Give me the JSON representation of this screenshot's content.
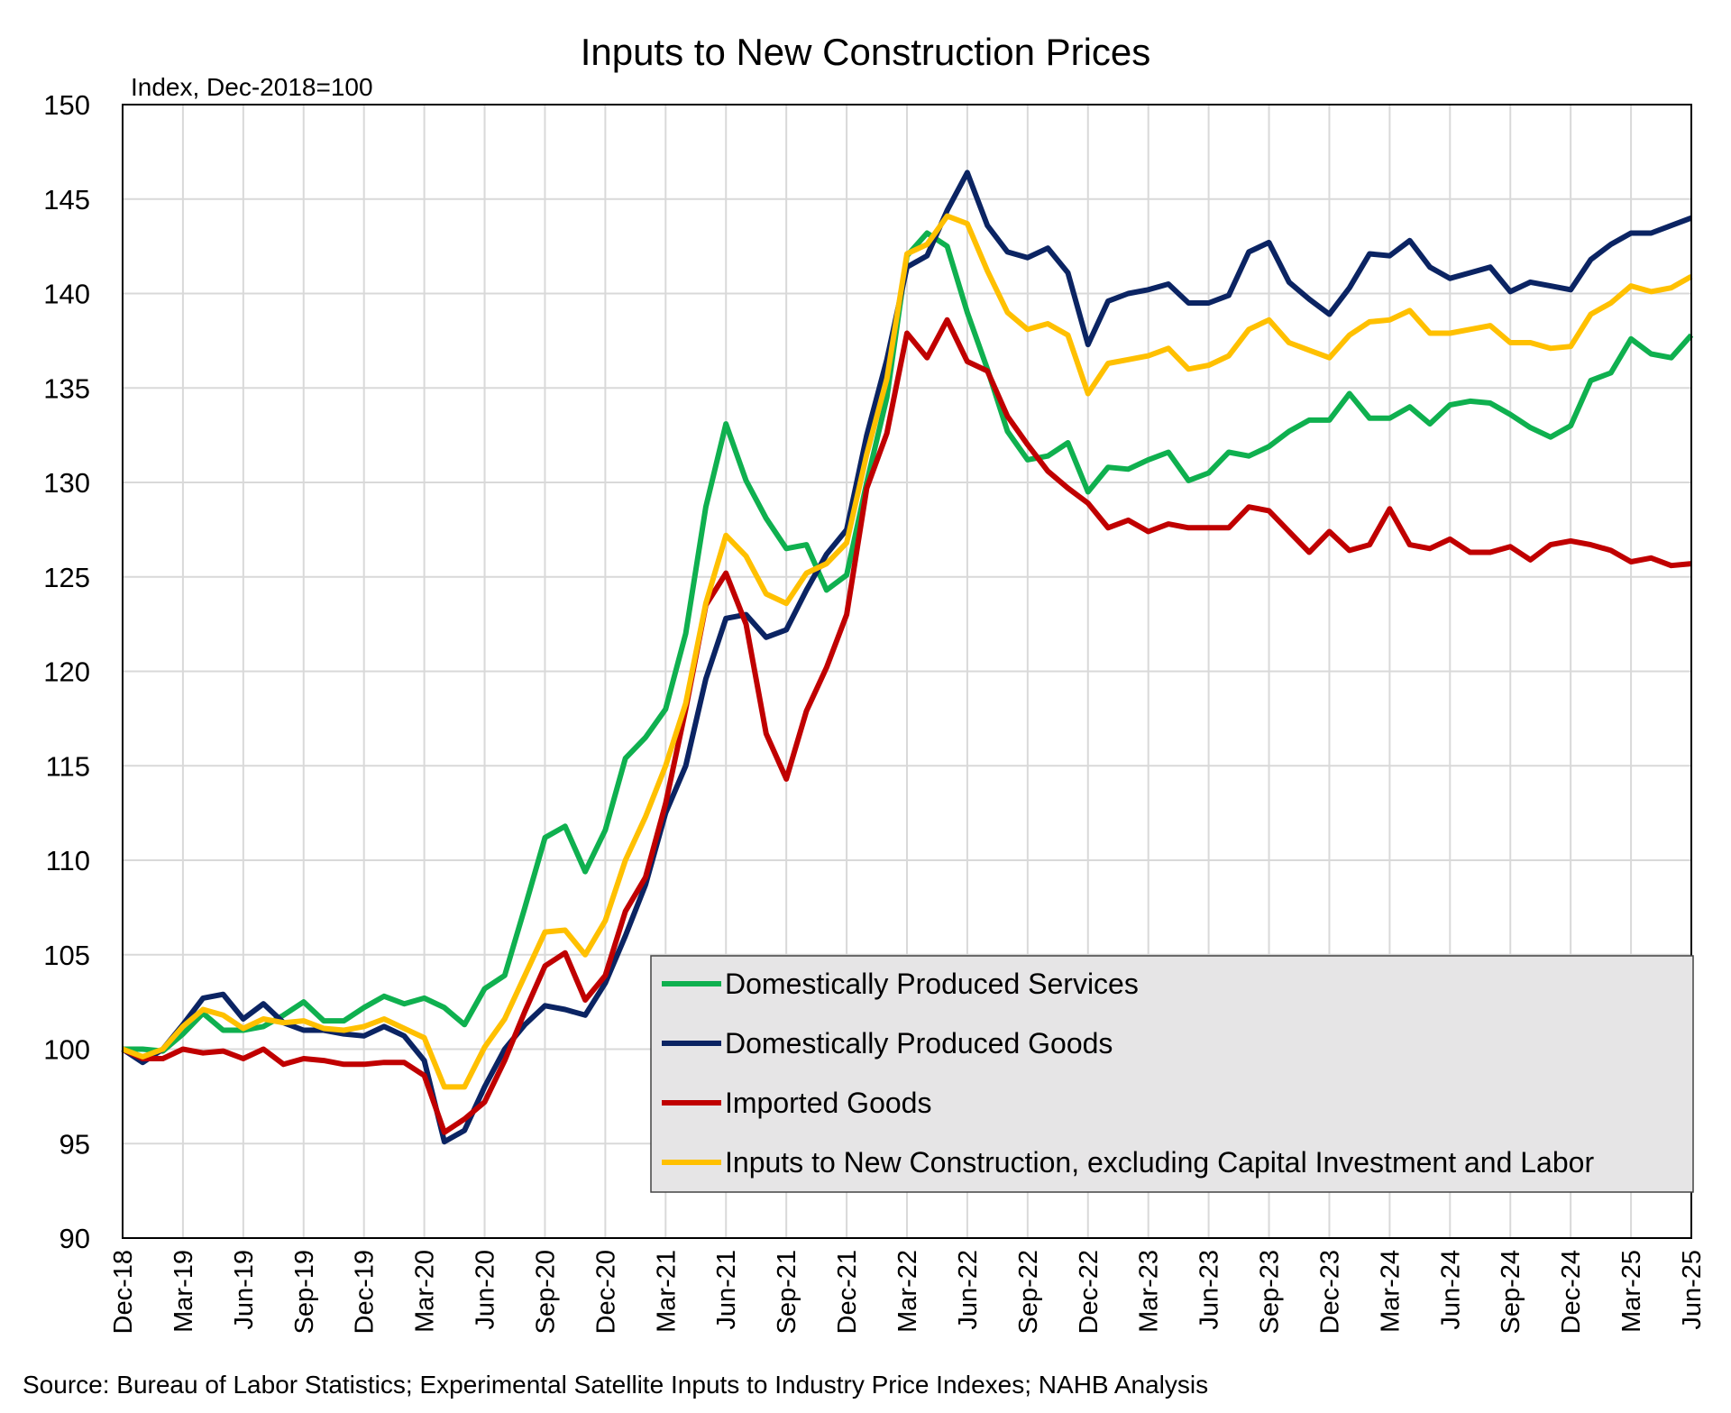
{
  "chart_data": {
    "type": "line",
    "title": "Inputs to New Construction Prices",
    "ylabel": "Index, Dec-2018=100",
    "xlabel": "",
    "source": "Source: Bureau of Labor Statistics; Experimental Satellite Inputs to Industry Price Indexes; NAHB Analysis",
    "ylim": [
      90,
      150
    ],
    "yticks": [
      90,
      95,
      100,
      105,
      110,
      115,
      120,
      125,
      130,
      135,
      140,
      145,
      150
    ],
    "grid": true,
    "legend_position": "bottom-right",
    "x_start": "Dec-18",
    "x_end": "Jun-25",
    "x_tick_labels": [
      "Dec-18",
      "Mar-19",
      "Jun-19",
      "Sep-19",
      "Dec-19",
      "Mar-20",
      "Jun-20",
      "Sep-20",
      "Dec-20",
      "Mar-21",
      "Jun-21",
      "Sep-21",
      "Dec-21",
      "Mar-22",
      "Jun-22",
      "Sep-22",
      "Dec-22",
      "Mar-23",
      "Jun-23",
      "Sep-23",
      "Dec-23",
      "Mar-24",
      "Jun-24",
      "Sep-24",
      "Dec-24",
      "Mar-25",
      "Jun-25"
    ],
    "series": [
      {
        "name": "Domestically Produced Services",
        "color": "#0fb04f",
        "values": [
          100,
          100,
          99.9,
          100.8,
          101.9,
          101,
          101,
          101.2,
          101.8,
          102.5,
          101.5,
          101.5,
          102.2,
          102.8,
          102.4,
          102.7,
          102.2,
          101.3,
          103.2,
          103.9,
          107.5,
          111.2,
          111.8,
          109.4,
          111.6,
          115.4,
          116.5,
          118,
          122,
          128.7,
          133.1,
          130.1,
          128.1,
          126.5,
          126.7,
          124.3,
          125.1,
          130,
          134.5,
          142,
          143.2,
          142.5,
          139,
          136,
          132.7,
          131.2,
          131.4,
          132.1,
          129.5,
          130.8,
          130.7,
          131.2,
          131.6,
          130.1,
          130.5,
          131.6,
          131.4,
          131.9,
          132.7,
          133.3,
          133.3,
          134.7,
          133.4,
          133.4,
          134,
          133.1,
          134.1,
          134.3,
          134.2,
          133.6,
          132.9,
          132.4,
          133,
          135.4,
          135.8,
          137.6,
          136.8,
          136.6,
          137.8
        ]
      },
      {
        "name": "Domestically Produced Goods",
        "color": "#0b2463",
        "values": [
          100,
          99.3,
          100,
          101.3,
          102.7,
          102.9,
          101.6,
          102.4,
          101.4,
          101,
          101,
          100.8,
          100.7,
          101.2,
          100.7,
          99.4,
          95.1,
          95.7,
          98,
          100,
          101.3,
          102.3,
          102.1,
          101.8,
          103.5,
          106,
          108.7,
          112.5,
          115,
          119.6,
          122.8,
          123,
          121.8,
          122.2,
          124.3,
          126.2,
          127.5,
          132.5,
          136.5,
          141.4,
          142,
          144.4,
          146.4,
          143.6,
          142.2,
          141.9,
          142.4,
          141.1,
          137.3,
          139.6,
          140,
          140.2,
          140.5,
          139.5,
          139.5,
          139.9,
          142.2,
          142.7,
          140.6,
          139.7,
          138.9,
          140.3,
          142.1,
          142,
          142.8,
          141.4,
          140.8,
          141.1,
          141.4,
          140.1,
          140.6,
          140.4,
          140.2,
          141.8,
          142.6,
          143.2,
          143.2,
          143.6,
          144
        ]
      },
      {
        "name": "Imported Goods",
        "color": "#c00000",
        "values": [
          100,
          99.5,
          99.5,
          100,
          99.8,
          99.9,
          99.5,
          100,
          99.2,
          99.5,
          99.4,
          99.2,
          99.2,
          99.3,
          99.3,
          98.6,
          95.6,
          96.3,
          97.2,
          99.4,
          102,
          104.4,
          105.1,
          102.6,
          103.9,
          107.3,
          109.1,
          113,
          118,
          123.5,
          125.2,
          122.5,
          116.7,
          114.3,
          117.9,
          120.2,
          123,
          129.7,
          132.6,
          137.9,
          136.6,
          138.6,
          136.4,
          135.9,
          133.5,
          132,
          130.6,
          129.7,
          128.9,
          127.6,
          128,
          127.4,
          127.8,
          127.6,
          127.6,
          127.6,
          128.7,
          128.5,
          127.4,
          126.3,
          127.4,
          126.4,
          126.7,
          128.6,
          126.7,
          126.5,
          127,
          126.3,
          126.3,
          126.6,
          125.9,
          126.7,
          126.9,
          126.7,
          126.4,
          125.8,
          126,
          125.6,
          125.7
        ]
      },
      {
        "name": "Inputs to New Construction, excluding Capital Investment and Labor",
        "color": "#ffc000",
        "values": [
          100,
          99.6,
          100,
          101.2,
          102.1,
          101.8,
          101.1,
          101.6,
          101.4,
          101.5,
          101.1,
          101,
          101.2,
          101.6,
          101.1,
          100.6,
          98,
          98,
          100.1,
          101.6,
          103.9,
          106.2,
          106.3,
          105,
          106.8,
          110,
          112.3,
          115,
          118.3,
          123.6,
          127.2,
          126.1,
          124.1,
          123.6,
          125.2,
          125.7,
          126.8,
          131.5,
          135.5,
          142.1,
          142.6,
          144.1,
          143.7,
          141.2,
          139,
          138.1,
          138.4,
          137.8,
          134.7,
          136.3,
          136.5,
          136.7,
          137.1,
          136,
          136.2,
          136.7,
          138.1,
          138.6,
          137.4,
          137,
          136.6,
          137.8,
          138.5,
          138.6,
          139.1,
          137.9,
          137.9,
          138.1,
          138.3,
          137.4,
          137.4,
          137.1,
          137.2,
          138.9,
          139.5,
          140.4,
          140.1,
          140.3,
          140.9
        ]
      }
    ]
  }
}
